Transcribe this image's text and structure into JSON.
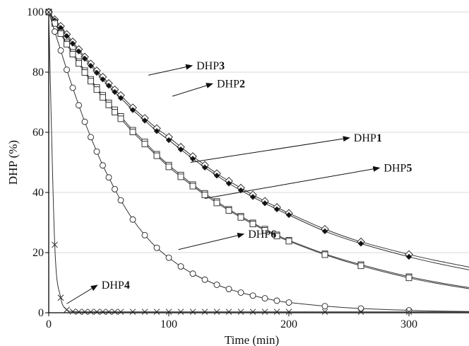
{
  "chart_data": {
    "type": "line",
    "xlabel": "Time (min)",
    "ylabel": "DHP (%)",
    "xlim": [
      0,
      350
    ],
    "ylim": [
      0,
      100
    ],
    "x_ticks": [
      0,
      100,
      200,
      300
    ],
    "y_ticks": [
      0,
      20,
      40,
      60,
      80,
      100
    ],
    "grid": "horizontal",
    "series": [
      {
        "name": "DHP3",
        "marker": "diamond",
        "x": [
          0,
          5,
          10,
          15,
          20,
          25,
          30,
          35,
          40,
          45,
          50,
          55,
          60,
          70,
          80,
          90,
          100,
          110,
          120,
          130,
          140,
          150,
          160,
          170,
          180,
          190,
          200,
          230,
          260,
          300
        ],
        "y": [
          100,
          97.5,
          95.3,
          92.6,
          90.1,
          87.6,
          85.1,
          82.8,
          80.5,
          78.4,
          76.3,
          74.2,
          72.3,
          68.2,
          64.7,
          61.3,
          58.4,
          55.1,
          52,
          49.1,
          46.3,
          43.8,
          41.5,
          39.2,
          37.1,
          35.1,
          33.1,
          27.8,
          23.6,
          19.4
        ]
      },
      {
        "name": "DHP2",
        "marker": "filled-diamond",
        "x": [
          0,
          5,
          10,
          15,
          20,
          25,
          30,
          35,
          40,
          45,
          50,
          55,
          60,
          70,
          80,
          90,
          100,
          110,
          120,
          130,
          140,
          150,
          160,
          170,
          180,
          190,
          200,
          230,
          260,
          300
        ],
        "y": [
          100,
          97.2,
          94.7,
          92,
          89.5,
          86.9,
          84.5,
          82.1,
          79.8,
          77.6,
          75.5,
          73.4,
          71.4,
          67.4,
          63.9,
          60.4,
          57.4,
          54.3,
          51.2,
          48.3,
          45.6,
          43,
          40.7,
          38.5,
          36.4,
          34.4,
          32.5,
          27.1,
          23,
          18.6
        ]
      },
      {
        "name": "DHP1",
        "marker": "square",
        "x": [
          0,
          5,
          10,
          15,
          20,
          25,
          30,
          35,
          40,
          45,
          50,
          55,
          60,
          70,
          80,
          90,
          100,
          110,
          120,
          130,
          140,
          150,
          160,
          170,
          180,
          190,
          200,
          230,
          260,
          300
        ],
        "y": [
          100,
          96.5,
          93.2,
          89.8,
          86.6,
          83.5,
          80.5,
          77.6,
          74.9,
          72.3,
          69.8,
          67.5,
          65.3,
          60.7,
          56.8,
          52.7,
          49.1,
          45.8,
          42.6,
          39.7,
          37,
          34.4,
          32.1,
          29.9,
          27.8,
          25.9,
          24.1,
          19.6,
          16,
          12
        ]
      },
      {
        "name": "DHP5",
        "marker": "square",
        "x": [
          0,
          5,
          10,
          15,
          20,
          25,
          30,
          35,
          40,
          45,
          50,
          55,
          60,
          70,
          80,
          90,
          100,
          110,
          120,
          130,
          140,
          150,
          160,
          170,
          180,
          190,
          200,
          230,
          260,
          300
        ],
        "y": [
          100,
          96.2,
          92.8,
          89.3,
          86,
          82.9,
          79.9,
          77,
          74.2,
          71.6,
          69.1,
          66.7,
          64.5,
          60.1,
          56.1,
          52.2,
          48.5,
          45.2,
          42.1,
          39.2,
          36.5,
          34,
          31.7,
          29.5,
          27.4,
          25.5,
          23.8,
          19.3,
          15.6,
          11.6
        ]
      },
      {
        "name": "DHP6",
        "marker": "circle",
        "x": [
          0,
          5,
          10,
          15,
          20,
          25,
          30,
          35,
          40,
          45,
          50,
          55,
          60,
          70,
          80,
          90,
          100,
          110,
          120,
          130,
          140,
          150,
          160,
          170,
          180,
          190,
          200,
          230,
          260,
          300
        ],
        "y": [
          100,
          93.5,
          87.2,
          80.8,
          74.8,
          69,
          63.5,
          58.4,
          53.6,
          49,
          45,
          41.1,
          37.4,
          31,
          25.8,
          21.6,
          18.3,
          15.4,
          13,
          11,
          9.3,
          7.9,
          6.7,
          5.7,
          4.8,
          4,
          3.4,
          2.2,
          1.4,
          0.8
        ]
      },
      {
        "name": "DHP4",
        "marker": "cross",
        "x": [
          0,
          5,
          10,
          15,
          20,
          25,
          30,
          35,
          40,
          45,
          50,
          55,
          60,
          70,
          80,
          90,
          100,
          110,
          120,
          130,
          140,
          150,
          160,
          170,
          180,
          190,
          200,
          230,
          260,
          300
        ],
        "y": [
          100,
          22.6,
          5,
          1,
          0.4,
          0.3,
          0.3,
          0.3,
          0.3,
          0.3,
          0.3,
          0.3,
          0.3,
          0.3,
          0.3,
          0.3,
          0.3,
          0.3,
          0.3,
          0.3,
          0.3,
          0.3,
          0.3,
          0.3,
          0.3,
          0.3,
          0.3,
          0.3,
          0.3,
          0.3
        ]
      }
    ],
    "annotations": [
      {
        "series": "DHP3",
        "prefix": "DHP",
        "num": "3",
        "text_at": [
          123,
          81
        ],
        "arrow_to": [
          83,
          79
        ]
      },
      {
        "series": "DHP2",
        "prefix": "DHP",
        "num": "2",
        "text_at": [
          140,
          75
        ],
        "arrow_to": [
          103,
          72
        ]
      },
      {
        "series": "DHP1",
        "prefix": "DHP",
        "num": "1",
        "text_at": [
          254,
          57
        ],
        "arrow_to": [
          118,
          50
        ]
      },
      {
        "series": "DHP5",
        "prefix": "DHP",
        "num": "5",
        "text_at": [
          279,
          47
        ],
        "arrow_to": [
          130,
          38
        ]
      },
      {
        "series": "DHP6",
        "prefix": "DHP",
        "num": "6",
        "text_at": [
          166,
          25
        ],
        "arrow_to": [
          108,
          21
        ]
      },
      {
        "series": "DHP4",
        "prefix": "DHP",
        "num": "4",
        "text_at": [
          44,
          8
        ],
        "arrow_to": [
          15,
          3
        ]
      }
    ]
  }
}
